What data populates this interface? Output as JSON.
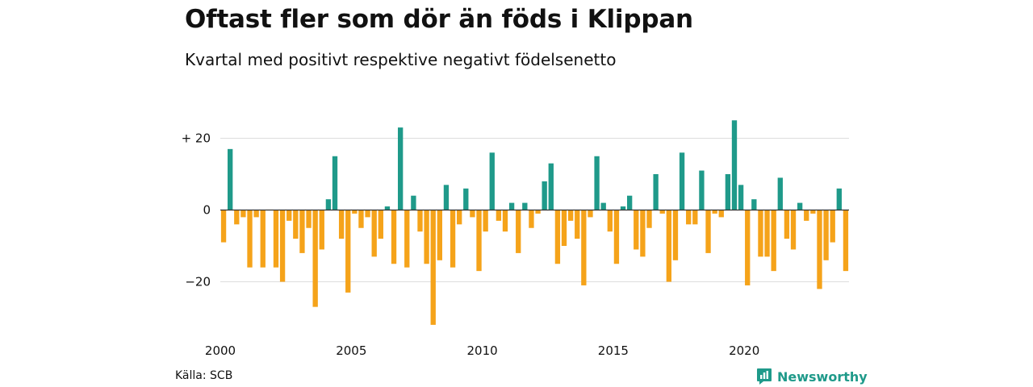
{
  "header": {
    "title": "Oftast fler som dör än föds i Klippan",
    "subtitle": "Kvartal med positivt respektive negativt födelsenetto"
  },
  "footer": {
    "source": "Källa: SCB",
    "brand": "Newsworthy"
  },
  "colors": {
    "positive": "#1f9a8a",
    "negative": "#f5a31a",
    "grid": "#dddddd",
    "zero_line": "#333333"
  },
  "chart_data": {
    "type": "bar",
    "title": "Oftast fler som dör än föds i Klippan",
    "subtitle": "Kvartal med positivt respektive negativt födelsenetto",
    "xlabel": "",
    "ylabel": "",
    "x_start": 2000,
    "ylim": [
      -32,
      26
    ],
    "grid": true,
    "yticks": [
      {
        "value": 20,
        "label": "+ 20"
      },
      {
        "value": 0,
        "label": "0"
      },
      {
        "value": -20,
        "label": "−20"
      }
    ],
    "xticks": [
      {
        "value": 2000,
        "label": "2000"
      },
      {
        "value": 2005,
        "label": "2005"
      },
      {
        "value": 2010,
        "label": "2010"
      },
      {
        "value": 2015,
        "label": "2015"
      },
      {
        "value": 2020,
        "label": "2020"
      }
    ],
    "values": [
      -9,
      17,
      -4,
      -2,
      -16,
      -2,
      -16,
      0,
      -16,
      -20,
      -3,
      -8,
      -12,
      -5,
      -27,
      -11,
      3,
      15,
      -8,
      -23,
      -1,
      -5,
      -2,
      -13,
      -8,
      1,
      -15,
      23,
      -16,
      4,
      -6,
      -15,
      -32,
      -14,
      7,
      -16,
      -4,
      6,
      -2,
      -17,
      -6,
      16,
      -3,
      -6,
      2,
      -12,
      2,
      -5,
      -1,
      8,
      13,
      -15,
      -10,
      -3,
      -8,
      -21,
      -2,
      15,
      2,
      -6,
      -15,
      1,
      4,
      -11,
      -13,
      -5,
      10,
      -1,
      -20,
      -14,
      16,
      -4,
      -4,
      11,
      -12,
      -1,
      -2,
      10,
      25,
      7,
      -21,
      3,
      -13,
      -13,
      -17,
      9,
      -8,
      -11,
      2,
      -3,
      -1,
      -22,
      -14,
      -9,
      6,
      -17
    ]
  }
}
